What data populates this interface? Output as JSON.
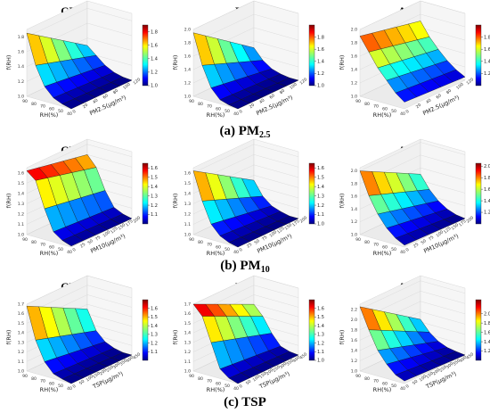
{
  "figure": {
    "columns": [
      "GBRT",
      "RF",
      "ANN"
    ],
    "rows": [
      {
        "caption_main": "(a) PM",
        "caption_sub": "2.5"
      },
      {
        "caption_main": "(b) PM",
        "caption_sub": "10"
      },
      {
        "caption_main": "(c) TSP",
        "caption_sub": ""
      }
    ]
  },
  "chart_data": [
    {
      "type": "surface3d",
      "model": "GBRT",
      "pollutant": "PM2.5",
      "title": "GBRT",
      "zlabel": "f(RH)",
      "xlabel": "RH(%)",
      "ylabel": "PM2.5(μg/m³)",
      "x_ticks": [
        "90",
        "80",
        "70",
        "60",
        "50",
        "40"
      ],
      "y_ticks": [
        "0",
        "20",
        "40",
        "60",
        "80",
        "100",
        "120"
      ],
      "z_ticks": [
        "1.0",
        "1.2",
        "1.4",
        "1.6",
        "1.8"
      ],
      "colorbar_ticks": [
        "1.0",
        "1.2",
        "1.4",
        "1.6",
        "1.8"
      ],
      "zlim": [
        1.0,
        1.9
      ],
      "colormap": "jet",
      "surface": {
        "rh": [
          90,
          80,
          70,
          60,
          50,
          40
        ],
        "f_rh_at_low_pm": [
          1.85,
          1.45,
          1.2,
          1.08,
          1.03,
          1.0
        ],
        "f_rh_at_high_pm": [
          1.3,
          1.2,
          1.1,
          1.04,
          1.01,
          1.0
        ]
      }
    },
    {
      "type": "surface3d",
      "model": "RF",
      "pollutant": "PM2.5",
      "title": "RF",
      "zlabel": "f(RH)",
      "xlabel": "RH(%)",
      "ylabel": "PM2.5(μg/m³)",
      "x_ticks": [
        "90",
        "80",
        "70",
        "60",
        "50",
        "40"
      ],
      "y_ticks": [
        "0",
        "20",
        "40",
        "60",
        "80",
        "100",
        "120"
      ],
      "z_ticks": [
        "1.0",
        "1.2",
        "1.4",
        "1.6",
        "1.8",
        "2.0"
      ],
      "colorbar_ticks": [
        "1.0",
        "1.2",
        "1.4",
        "1.6",
        "1.8"
      ],
      "zlim": [
        1.0,
        2.0
      ],
      "colormap": "jet",
      "surface": {
        "rh": [
          90,
          80,
          70,
          60,
          50,
          40
        ],
        "f_rh_at_low_pm": [
          1.95,
          1.5,
          1.2,
          1.06,
          1.02,
          1.0
        ],
        "f_rh_at_high_pm": [
          1.3,
          1.15,
          1.06,
          1.02,
          1.0,
          1.0
        ]
      }
    },
    {
      "type": "surface3d",
      "model": "ANN",
      "pollutant": "PM2.5",
      "title": "ANN",
      "zlabel": "f(RH)",
      "xlabel": "RH(%)",
      "ylabel": "PM2.5(μg/m³)",
      "x_ticks": [
        "90",
        "80",
        "70",
        "60",
        "50",
        "40"
      ],
      "y_ticks": [
        "0",
        "20",
        "40",
        "60",
        "80",
        "100",
        "120"
      ],
      "z_ticks": [
        "1.0",
        "1.2",
        "1.4",
        "1.6",
        "1.8",
        "2.0"
      ],
      "colorbar_ticks": [
        "1.2",
        "1.4",
        "1.6",
        "1.8"
      ],
      "zlim": [
        1.0,
        2.0
      ],
      "colormap": "jet",
      "surface": {
        "rh": [
          90,
          80,
          70,
          60,
          50,
          40
        ],
        "f_rh_at_low_pm": [
          1.9,
          1.7,
          1.5,
          1.35,
          1.2,
          1.1
        ],
        "f_rh_at_high_pm": [
          1.7,
          1.5,
          1.35,
          1.22,
          1.12,
          1.05
        ]
      }
    },
    {
      "type": "surface3d",
      "model": "GBRT",
      "pollutant": "PM10",
      "title": "GBRT",
      "zlabel": "f(RH)",
      "xlabel": "RH(%)",
      "ylabel": "PM10(μg/m³)",
      "x_ticks": [
        "90",
        "80",
        "70",
        "60",
        "50",
        "40"
      ],
      "y_ticks": [
        "0",
        "25",
        "50",
        "75",
        "100",
        "125",
        "150",
        "175",
        "200"
      ],
      "z_ticks": [
        "1.0",
        "1.1",
        "1.2",
        "1.3",
        "1.4",
        "1.5",
        "1.6"
      ],
      "colorbar_ticks": [
        "1.1",
        "1.2",
        "1.3",
        "1.4",
        "1.5",
        "1.6"
      ],
      "zlim": [
        1.0,
        1.65
      ],
      "colormap": "jet",
      "surface": {
        "rh": [
          90,
          80,
          70,
          60,
          50,
          40
        ],
        "f_rh_at_low_pm": [
          1.62,
          1.55,
          1.3,
          1.1,
          1.04,
          1.01
        ],
        "f_rh_at_high_pm": [
          1.5,
          1.4,
          1.2,
          1.06,
          1.02,
          1.0
        ]
      }
    },
    {
      "type": "surface3d",
      "model": "RF",
      "pollutant": "PM10",
      "title": "",
      "zlabel": "f(RH)",
      "xlabel": "RH(%)",
      "ylabel": "PM10(μg/m³)",
      "x_ticks": [
        "90",
        "80",
        "70",
        "60",
        "50",
        "40"
      ],
      "y_ticks": [
        "0",
        "25",
        "50",
        "75",
        "100",
        "125",
        "150",
        "175",
        "200"
      ],
      "z_ticks": [
        "1.0",
        "1.1",
        "1.2",
        "1.3",
        "1.4",
        "1.5",
        "1.6"
      ],
      "colorbar_ticks": [
        "1.0",
        "1.1",
        "1.2",
        "1.3",
        "1.4",
        "1.5",
        "1.6"
      ],
      "zlim": [
        1.0,
        1.65
      ],
      "colormap": "jet",
      "surface": {
        "rh": [
          90,
          80,
          70,
          60,
          50,
          40
        ],
        "f_rh_at_low_pm": [
          1.62,
          1.35,
          1.15,
          1.06,
          1.02,
          1.0
        ],
        "f_rh_at_high_pm": [
          1.25,
          1.12,
          1.05,
          1.02,
          1.0,
          1.0
        ]
      }
    },
    {
      "type": "surface3d",
      "model": "ANN",
      "pollutant": "PM10",
      "title": "ANN",
      "zlabel": "f(RH)",
      "xlabel": "RH(%)",
      "ylabel": "PM10(μg/m³)",
      "x_ticks": [
        "90",
        "80",
        "70",
        "60",
        "50",
        "40"
      ],
      "y_ticks": [
        "0",
        "25",
        "50",
        "75",
        "100",
        "125",
        "150",
        "175",
        "200"
      ],
      "z_ticks": [
        "1.0",
        "1.2",
        "1.4",
        "1.6",
        "1.8",
        "2.0"
      ],
      "colorbar_ticks": [
        "1.2",
        "1.4",
        "1.6",
        "1.8",
        "2.0"
      ],
      "zlim": [
        1.0,
        2.05
      ],
      "colormap": "jet",
      "surface": {
        "rh": [
          90,
          80,
          70,
          60,
          50,
          40
        ],
        "f_rh_at_low_pm": [
          2.0,
          1.65,
          1.4,
          1.22,
          1.1,
          1.03
        ],
        "f_rh_at_high_pm": [
          1.5,
          1.3,
          1.16,
          1.07,
          1.02,
          1.0
        ]
      }
    },
    {
      "type": "surface3d",
      "model": "GBRT",
      "pollutant": "TSP",
      "title": "GBRT",
      "zlabel": "f(RH)",
      "xlabel": "RH(%)",
      "ylabel": "TSP(μg/m³)",
      "x_ticks": [
        "90",
        "80",
        "70",
        "60",
        "50",
        "40"
      ],
      "y_ticks": [
        "0",
        "50",
        "100",
        "150",
        "200",
        "250",
        "300",
        "350",
        "400",
        "450"
      ],
      "z_ticks": [
        "1.0",
        "1.1",
        "1.2",
        "1.3",
        "1.4",
        "1.5",
        "1.6",
        "1.7"
      ],
      "colorbar_ticks": [
        "1.1",
        "1.2",
        "1.3",
        "1.4",
        "1.5",
        "1.6"
      ],
      "zlim": [
        1.0,
        1.7
      ],
      "colormap": "jet",
      "surface": {
        "rh": [
          90,
          80,
          70,
          60,
          50,
          40
        ],
        "f_rh_at_low_pm": [
          1.68,
          1.35,
          1.15,
          1.05,
          1.02,
          1.0
        ],
        "f_rh_at_high_pm": [
          1.35,
          1.15,
          1.06,
          1.02,
          1.0,
          1.0
        ]
      }
    },
    {
      "type": "surface3d",
      "model": "RF",
      "pollutant": "TSP",
      "title": "RF",
      "zlabel": "f(RH)",
      "xlabel": "RH(%)",
      "ylabel": "TSP(μg/m³)",
      "x_ticks": [
        "90",
        "80",
        "70",
        "60",
        "50",
        "40"
      ],
      "y_ticks": [
        "0",
        "50",
        "100",
        "150",
        "200",
        "250",
        "300",
        "350",
        "400",
        "450"
      ],
      "z_ticks": [
        "1.0",
        "1.1",
        "1.2",
        "1.3",
        "1.4",
        "1.5",
        "1.6",
        "1.7"
      ],
      "colorbar_ticks": [
        "1.0",
        "1.1",
        "1.2",
        "1.3",
        "1.4",
        "1.5",
        "1.6"
      ],
      "zlim": [
        1.0,
        1.7
      ],
      "colormap": "jet",
      "surface": {
        "rh": [
          90,
          80,
          70,
          60,
          50,
          40
        ],
        "f_rh_at_low_pm": [
          1.7,
          1.6,
          1.35,
          1.1,
          1.03,
          1.0
        ],
        "f_rh_at_high_pm": [
          1.4,
          1.3,
          1.15,
          1.04,
          1.01,
          1.0
        ]
      }
    },
    {
      "type": "surface3d",
      "model": "ANN",
      "pollutant": "TSP",
      "title": "ANN",
      "zlabel": "f(RH)",
      "xlabel": "RH(%)",
      "ylabel": "TSP(μg/m³)",
      "x_ticks": [
        "90",
        "80",
        "70",
        "60",
        "50",
        "40"
      ],
      "y_ticks": [
        "0",
        "50",
        "100",
        "150",
        "200",
        "250",
        "300",
        "350",
        "400",
        "450"
      ],
      "z_ticks": [
        "1.0",
        "1.2",
        "1.4",
        "1.6",
        "1.8",
        "2.0",
        "2.2"
      ],
      "colorbar_ticks": [
        "1.2",
        "1.4",
        "1.6",
        "1.8",
        "2.0"
      ],
      "zlim": [
        1.0,
        2.3
      ],
      "colormap": "jet",
      "surface": {
        "rh": [
          90,
          80,
          70,
          60,
          50,
          40
        ],
        "f_rh_at_low_pm": [
          2.25,
          1.85,
          1.5,
          1.28,
          1.12,
          1.05
        ],
        "f_rh_at_high_pm": [
          1.45,
          1.25,
          1.12,
          1.05,
          1.02,
          1.0
        ]
      }
    }
  ]
}
